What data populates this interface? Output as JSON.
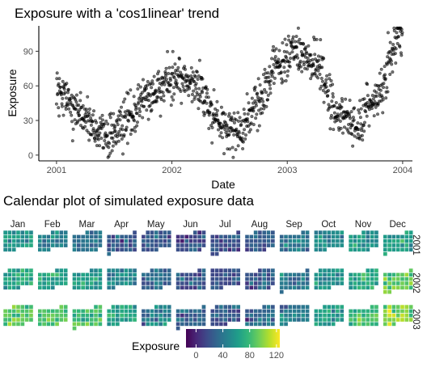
{
  "chart_data": [
    {
      "type": "scatter",
      "title": "Exposure with a 'cos1linear' trend",
      "xlabel": "Date",
      "ylabel": "Exposure",
      "x_ticks": [
        "2001",
        "2002",
        "2003",
        "2004"
      ],
      "y_ticks": [
        0,
        30,
        60,
        90
      ],
      "xlim": [
        "2000-11-06",
        "2004-02-01"
      ],
      "ylim": [
        -5,
        112
      ],
      "grid": false,
      "point_color": "#000000",
      "trend_knots": [
        {
          "x": "2001-01-01",
          "y": 52
        },
        {
          "x": "2001-03-01",
          "y": 38
        },
        {
          "x": "2001-06-01",
          "y": 18
        },
        {
          "x": "2001-08-01",
          "y": 25
        },
        {
          "x": "2001-10-15",
          "y": 50
        },
        {
          "x": "2002-01-01",
          "y": 68
        },
        {
          "x": "2002-03-15",
          "y": 62
        },
        {
          "x": "2002-06-01",
          "y": 30
        },
        {
          "x": "2002-08-01",
          "y": 18
        },
        {
          "x": "2002-10-01",
          "y": 45
        },
        {
          "x": "2002-12-01",
          "y": 78
        },
        {
          "x": "2003-02-01",
          "y": 92
        },
        {
          "x": "2003-04-01",
          "y": 75
        },
        {
          "x": "2003-06-15",
          "y": 38
        },
        {
          "x": "2003-08-01",
          "y": 22
        },
        {
          "x": "2003-10-01",
          "y": 48
        },
        {
          "x": "2003-12-31",
          "y": 105
        }
      ],
      "noise_sd": 9
    },
    {
      "type": "heatmap",
      "title": "Calendar plot of simulated exposure data",
      "months": [
        "Jan",
        "Feb",
        "Mar",
        "Apr",
        "May",
        "Jun",
        "Jul",
        "Aug",
        "Sep",
        "Oct",
        "Nov",
        "Dec"
      ],
      "years": [
        "2001",
        "2002",
        "2003"
      ],
      "monthly_level": [
        [
          55,
          48,
          38,
          25,
          22,
          18,
          20,
          28,
          40,
          52,
          60,
          62
        ],
        [
          70,
          68,
          60,
          50,
          32,
          22,
          20,
          22,
          38,
          55,
          72,
          88
        ],
        [
          90,
          85,
          78,
          65,
          45,
          30,
          25,
          28,
          40,
          60,
          82,
          102
        ]
      ],
      "legend": {
        "title": "Exposure",
        "ticks": [
          0,
          40,
          80,
          120
        ],
        "range": [
          -15,
          125
        ],
        "position": "bottom"
      },
      "colorscale": [
        "#440154",
        "#482878",
        "#3e4a89",
        "#31688e",
        "#26828e",
        "#1f9e89",
        "#35b779",
        "#6ece58",
        "#b5de2b",
        "#fde725"
      ]
    }
  ]
}
